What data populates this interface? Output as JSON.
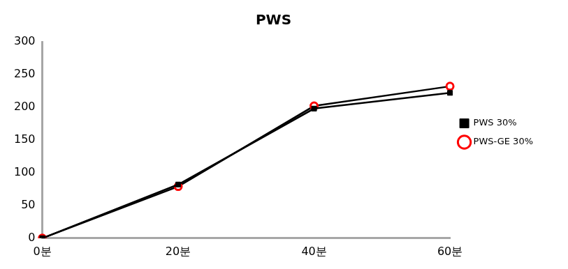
{
  "chart_data": {
    "type": "line",
    "title": "PWS",
    "categories": [
      "0분",
      "20분",
      "40분",
      "60분"
    ],
    "series": [
      {
        "name": "PWS 30%",
        "color": "#000000",
        "marker": "square",
        "values": [
          0,
          82,
          198,
          222
        ]
      },
      {
        "name": "PWS-GE 30%",
        "color": "#ff0000",
        "marker": "circle",
        "values": [
          0,
          79,
          202,
          232
        ]
      }
    ],
    "ylim": [
      0,
      300
    ],
    "yticks": [
      0,
      50,
      100,
      150,
      200,
      250,
      300
    ],
    "grid": false,
    "legend": "right"
  }
}
